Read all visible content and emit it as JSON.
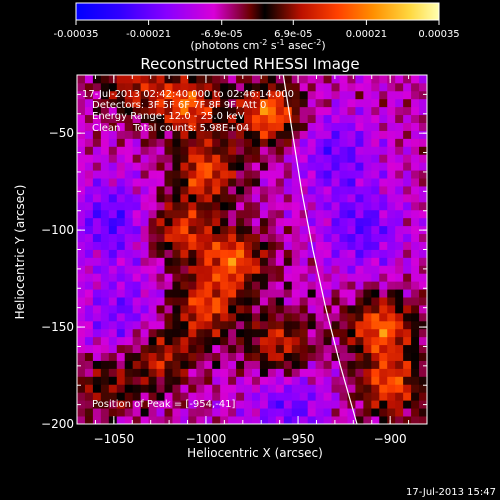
{
  "colorbar": {
    "tick_labels": [
      "-0.00035",
      "-0.00021",
      "-6.9e-05",
      "6.9e-05",
      "0.00021",
      "0.00035"
    ],
    "tick_values": [
      -0.00035,
      -0.00021,
      -6.9e-05,
      6.9e-05,
      0.00021,
      0.00035
    ],
    "range": [
      -0.00035,
      0.00035
    ],
    "units_label": "(photons cm",
    "units_exp1": "-2",
    "units_mid": " s",
    "units_exp2": "-1",
    "units_tail": " asec",
    "units_exp3": "-2",
    "units_close": ")"
  },
  "chart_data": {
    "type": "heatmap",
    "title": "Reconstructed RHESSI Image",
    "xlabel": "Heliocentric X (arcsec)",
    "ylabel": "Heliocentric Y (arcsec)",
    "xlim": [
      -1070,
      -880
    ],
    "ylim": [
      -200,
      -20
    ],
    "xticks": [
      -1050,
      -1000,
      -950,
      -900
    ],
    "yticks": [
      -50,
      -100,
      -150,
      -200
    ],
    "xtick_labels": [
      "−1050",
      "−1000",
      "−950",
      "−900"
    ],
    "ytick_labels": [
      "−50",
      "−100",
      "−150",
      "−200"
    ],
    "limb_curve": [
      [
        -958,
        -20
      ],
      [
        -953,
        -50
      ],
      [
        -948,
        -80
      ],
      [
        -942,
        -110
      ],
      [
        -935,
        -140
      ],
      [
        -927,
        -170
      ],
      [
        -918,
        -200
      ]
    ],
    "hot_regions": [
      {
        "x": -1040,
        "y": -25,
        "level": 0.6
      },
      {
        "x": -1010,
        "y": -35,
        "level": 0.9
      },
      {
        "x": -965,
        "y": -40,
        "level": 1.0
      },
      {
        "x": -1000,
        "y": -70,
        "level": 0.85
      },
      {
        "x": -1015,
        "y": -100,
        "level": 0.75
      },
      {
        "x": -985,
        "y": -115,
        "level": 0.9
      },
      {
        "x": -1000,
        "y": -140,
        "level": 0.8
      },
      {
        "x": -1025,
        "y": -165,
        "level": 0.7
      },
      {
        "x": -960,
        "y": -160,
        "level": 0.75
      },
      {
        "x": -905,
        "y": -150,
        "level": 0.95
      },
      {
        "x": -900,
        "y": -180,
        "level": 0.85
      },
      {
        "x": -1055,
        "y": -180,
        "level": 0.5
      }
    ],
    "cold_regions": [
      {
        "x": -1050,
        "y": -95,
        "level": 0.7
      },
      {
        "x": -930,
        "y": -60,
        "level": 0.6
      },
      {
        "x": -915,
        "y": -100,
        "level": 0.65
      },
      {
        "x": -955,
        "y": -190,
        "level": 0.6
      },
      {
        "x": -1045,
        "y": -145,
        "level": 0.55
      }
    ]
  },
  "annotations": {
    "time_range": "17-Jul-2013 02:42:40.000 to 02:46:14.000",
    "detectors": "Detectors: 3F 5F 6F 7F 8F 9F, Att 0",
    "energy": "Energy Range: 12.0 - 25.0 keV",
    "method": "Clean    Total counts: 5.98E+04",
    "peak": "Position of Peak = [-954,-41]"
  },
  "footer": {
    "timestamp": "17-Jul-2013 15:47"
  }
}
